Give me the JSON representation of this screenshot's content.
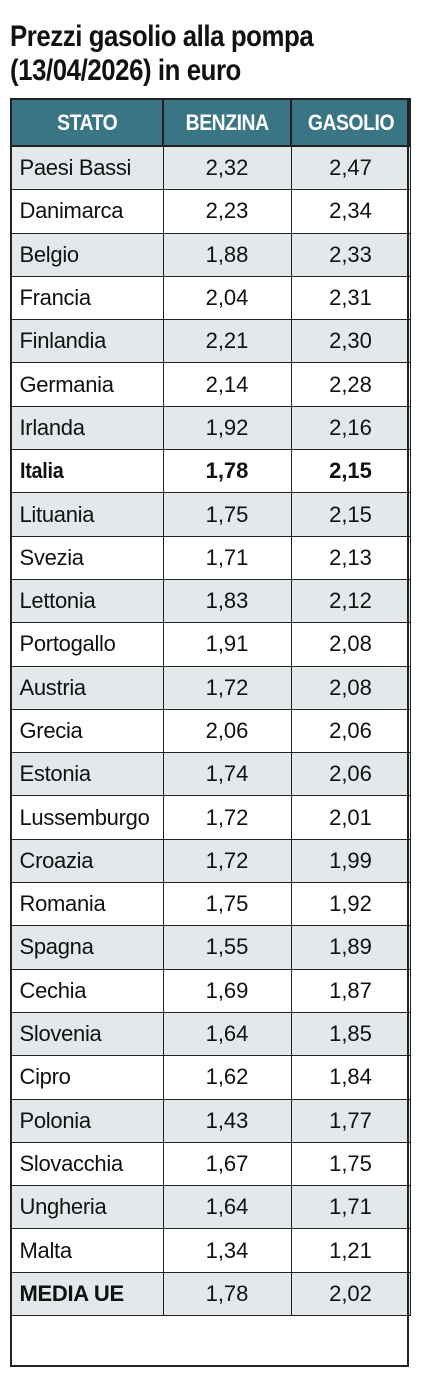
{
  "title": {
    "line1": "Prezzi gasolio alla pompa",
    "line2": "(13/04/2026) in euro"
  },
  "table": {
    "headers": [
      "STATO",
      "BENZINA",
      "GASOLIO"
    ],
    "rows": [
      {
        "stato": "Paesi Bassi",
        "benzina": "2,32",
        "gasolio": "2,47"
      },
      {
        "stato": "Danimarca",
        "benzina": "2,23",
        "gasolio": "2,34"
      },
      {
        "stato": "Belgio",
        "benzina": "1,88",
        "gasolio": "2,33"
      },
      {
        "stato": "Francia",
        "benzina": "2,04",
        "gasolio": "2,31"
      },
      {
        "stato": "Finlandia",
        "benzina": "2,21",
        "gasolio": "2,30"
      },
      {
        "stato": "Germania",
        "benzina": "2,14",
        "gasolio": "2,28"
      },
      {
        "stato": "Irlanda",
        "benzina": "1,92",
        "gasolio": "2,16"
      },
      {
        "stato": "Italia",
        "benzina": "1,78",
        "gasolio": "2,15",
        "bold": true
      },
      {
        "stato": "Lituania",
        "benzina": "1,75",
        "gasolio": "2,15"
      },
      {
        "stato": "Svezia",
        "benzina": "1,71",
        "gasolio": "2,13"
      },
      {
        "stato": "Lettonia",
        "benzina": "1,83",
        "gasolio": "2,12"
      },
      {
        "stato": "Portogallo",
        "benzina": "1,91",
        "gasolio": "2,08"
      },
      {
        "stato": "Austria",
        "benzina": "1,72",
        "gasolio": "2,08"
      },
      {
        "stato": "Grecia",
        "benzina": "2,06",
        "gasolio": "2,06"
      },
      {
        "stato": "Estonia",
        "benzina": "1,74",
        "gasolio": "2,06"
      },
      {
        "stato": "Lussemburgo",
        "benzina": "1,72",
        "gasolio": "2,01"
      },
      {
        "stato": "Croazia",
        "benzina": "1,72",
        "gasolio": "1,99"
      },
      {
        "stato": "Romania",
        "benzina": "1,75",
        "gasolio": "1,92"
      },
      {
        "stato": "Spagna",
        "benzina": "1,55",
        "gasolio": "1,89"
      },
      {
        "stato": "Cechia",
        "benzina": "1,69",
        "gasolio": "1,87"
      },
      {
        "stato": "Slovenia",
        "benzina": "1,64",
        "gasolio": "1,85"
      },
      {
        "stato": "Cipro",
        "benzina": "1,62",
        "gasolio": "1,84"
      },
      {
        "stato": "Polonia",
        "benzina": "1,43",
        "gasolio": "1,77"
      },
      {
        "stato": "Slovacchia",
        "benzina": "1,67",
        "gasolio": "1,75"
      },
      {
        "stato": "Ungheria",
        "benzina": "1,64",
        "gasolio": "1,71"
      },
      {
        "stato": "Malta",
        "benzina": "1,34",
        "gasolio": "1,21"
      },
      {
        "stato": "MEDIA UE",
        "benzina": "1,78",
        "gasolio": "2,02",
        "bold_label": true
      }
    ]
  },
  "colors": {
    "header_background": "#3a7585",
    "header_text": "#ffffff",
    "row_shade": "#e3e8ea",
    "row_plain": "#ffffff",
    "border": "#222222"
  }
}
